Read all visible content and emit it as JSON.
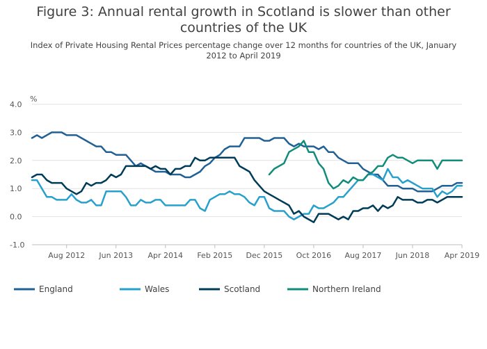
{
  "title": "Figure 3: Annual rental growth in Scotland is slower than other countries of the UK",
  "subtitle": "Index of Private Housing Rental Prices percentage change over 12 months for countries of the UK, January 2012 to April 2019",
  "chart_data": {
    "type": "line",
    "ylabel": "%",
    "ylim": [
      -1.0,
      4.0
    ],
    "yticks": [
      "4.0",
      "3.0",
      "2.0",
      "1.0",
      "0.0",
      "-1.0"
    ],
    "yticks_values": [
      4,
      3,
      2,
      1,
      0,
      -1
    ],
    "xlim": [
      0,
      87
    ],
    "xticks": [
      "Aug 2012",
      "Jun 2013",
      "Apr 2014",
      "Feb 2015",
      "Dec 2015",
      "Oct 2016",
      "Aug 2017",
      "Jun 2018",
      "Apr 2019"
    ],
    "xticks_index": [
      7,
      17,
      27,
      37,
      47,
      57,
      67,
      77,
      87
    ],
    "grid": true,
    "legend_position": "bottom",
    "series": [
      {
        "name": "England",
        "color": "#206095",
        "start_month": "2012-01",
        "values": [
          2.8,
          2.9,
          2.8,
          2.9,
          3.0,
          3.0,
          3.0,
          2.9,
          2.9,
          2.9,
          2.8,
          2.7,
          2.6,
          2.5,
          2.5,
          2.3,
          2.3,
          2.2,
          2.2,
          2.2,
          2.0,
          1.8,
          1.9,
          1.8,
          1.7,
          1.6,
          1.6,
          1.6,
          1.5,
          1.5,
          1.5,
          1.4,
          1.4,
          1.5,
          1.6,
          1.8,
          1.9,
          2.1,
          2.2,
          2.4,
          2.5,
          2.5,
          2.5,
          2.8,
          2.8,
          2.8,
          2.8,
          2.7,
          2.7,
          2.8,
          2.8,
          2.8,
          2.6,
          2.5,
          2.6,
          2.5,
          2.5,
          2.5,
          2.4,
          2.5,
          2.3,
          2.3,
          2.1,
          2.0,
          1.9,
          1.9,
          1.9,
          1.7,
          1.6,
          1.5,
          1.5,
          1.3,
          1.1,
          1.1,
          1.1,
          1.0,
          1.0,
          1.0,
          0.9,
          0.9,
          0.9,
          0.9,
          1.0,
          1.1,
          1.1,
          1.1,
          1.2,
          1.2
        ]
      },
      {
        "name": "Wales",
        "color": "#27a0cc",
        "start_month": "2012-01",
        "values": [
          1.3,
          1.3,
          1.0,
          0.7,
          0.7,
          0.6,
          0.6,
          0.6,
          0.8,
          0.6,
          0.5,
          0.5,
          0.6,
          0.4,
          0.4,
          0.9,
          0.9,
          0.9,
          0.9,
          0.7,
          0.4,
          0.4,
          0.6,
          0.5,
          0.5,
          0.6,
          0.6,
          0.4,
          0.4,
          0.4,
          0.4,
          0.4,
          0.6,
          0.6,
          0.3,
          0.2,
          0.6,
          0.7,
          0.8,
          0.8,
          0.9,
          0.8,
          0.8,
          0.7,
          0.5,
          0.4,
          0.7,
          0.7,
          0.3,
          0.2,
          0.2,
          0.2,
          0.0,
          -0.1,
          0.0,
          0.1,
          0.1,
          0.4,
          0.3,
          0.3,
          0.4,
          0.5,
          0.7,
          0.7,
          0.9,
          1.1,
          1.3,
          1.3,
          1.5,
          1.5,
          1.4,
          1.3,
          1.7,
          1.4,
          1.4,
          1.2,
          1.3,
          1.2,
          1.1,
          1.0,
          1.0,
          1.0,
          0.7,
          0.9,
          0.8,
          0.9,
          1.1,
          1.1
        ]
      },
      {
        "name": "Scotland",
        "color": "#003c57",
        "start_month": "2012-01",
        "values": [
          1.4,
          1.5,
          1.5,
          1.3,
          1.2,
          1.2,
          1.2,
          1.0,
          0.9,
          0.8,
          0.9,
          1.2,
          1.1,
          1.2,
          1.2,
          1.3,
          1.5,
          1.4,
          1.5,
          1.8,
          1.8,
          1.8,
          1.8,
          1.8,
          1.7,
          1.8,
          1.7,
          1.7,
          1.5,
          1.7,
          1.7,
          1.8,
          1.8,
          2.1,
          2.0,
          2.0,
          2.1,
          2.1,
          2.1,
          2.1,
          2.1,
          2.1,
          1.8,
          1.7,
          1.6,
          1.3,
          1.1,
          0.9,
          0.8,
          0.7,
          0.6,
          0.5,
          0.4,
          0.1,
          0.2,
          0.0,
          -0.1,
          -0.2,
          0.1,
          0.1,
          0.1,
          0.0,
          -0.1,
          0.0,
          -0.1,
          0.2,
          0.2,
          0.3,
          0.3,
          0.4,
          0.2,
          0.4,
          0.3,
          0.4,
          0.7,
          0.6,
          0.6,
          0.6,
          0.5,
          0.5,
          0.6,
          0.6,
          0.5,
          0.6,
          0.7,
          0.7,
          0.7,
          0.7
        ]
      },
      {
        "name": "Northern Ireland",
        "color": "#118c7b",
        "start_month": "2016-01",
        "values": [
          1.5,
          1.7,
          1.8,
          1.9,
          2.3,
          2.4,
          2.5,
          2.7,
          2.3,
          2.3,
          1.9,
          1.7,
          1.2,
          1.0,
          1.1,
          1.3,
          1.2,
          1.4,
          1.3,
          1.3,
          1.5,
          1.6,
          1.8,
          1.8,
          2.1,
          2.2,
          2.1,
          2.1,
          2.0,
          1.9,
          2.0,
          2.0,
          2.0,
          2.0,
          1.7,
          2.0,
          2.0,
          2.0,
          2.0,
          2.0
        ]
      }
    ]
  }
}
